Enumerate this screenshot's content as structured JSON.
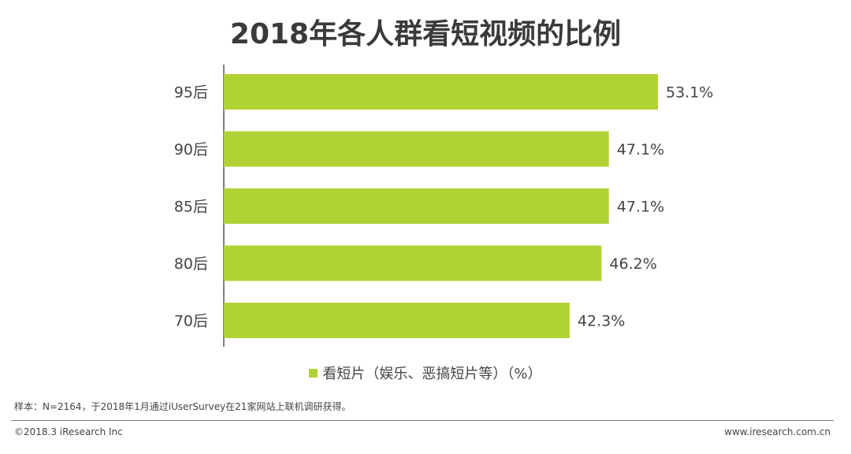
{
  "title": "2018年各人群看短视频的比例",
  "legend": {
    "label": "看短片（娱乐、恶搞短片等）（%）",
    "color": "#b0d235"
  },
  "source": "样本：N=2164，于2018年1月通过iUserSurvey在21家网站上联机调研获得。",
  "footer": {
    "copyright": "©2018.3 iResearch Inc",
    "website": "www.iresearch.com.cn"
  },
  "colors": {
    "bar": "#b0d235",
    "axis": "#555555"
  },
  "chart_data": {
    "type": "bar",
    "orientation": "horizontal",
    "title": "2018年各人群看短视频的比例",
    "categories": [
      "95后",
      "90后",
      "85后",
      "80后",
      "70后"
    ],
    "series": [
      {
        "name": "看短片（娱乐、恶搞短片等）（%）",
        "values": [
          53.1,
          47.1,
          47.1,
          46.2,
          42.3
        ]
      }
    ],
    "value_labels": [
      "53.1%",
      "47.1%",
      "47.1%",
      "46.2%",
      "42.3%"
    ],
    "xlim": [
      0,
      53.1
    ],
    "grid": false,
    "legend_position": "bottom"
  }
}
